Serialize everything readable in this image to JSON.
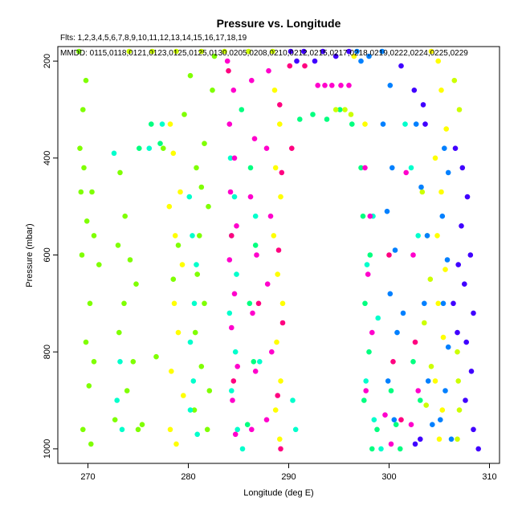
{
  "chart_data": {
    "type": "scatter",
    "title": "Pressure vs. Longitude",
    "fltsLine": "Flts: 1,2,3,4,5,6,7,8,9,10,11,12,13,14,15,16,17,18,19",
    "mmddLine": "MMDD: 0115,0118,0121,0123,0125,0125,0130,0205,0208,0210,0212,0215,0217,0218,0219,0222,0224,0225,0229",
    "xlabel": "Longitude (deg E)",
    "ylabel": "Pressure (mbar)",
    "xlim": [
      267,
      311
    ],
    "ylim": [
      1030,
      170
    ],
    "xticks": [
      "270",
      "280",
      "290",
      "300",
      "310"
    ],
    "yticks": [
      "200",
      "400",
      "600",
      "800",
      "1000"
    ],
    "grid": false,
    "colors": [
      "#7fff00",
      "#ffff00",
      "#00ffcc",
      "#ff00cc",
      "#00ff7f",
      "#ccff00",
      "#0080ff",
      "#4000ff",
      "#ff0080"
    ],
    "series": [
      {
        "color": "#7fff00",
        "points": [
          [
            269.1,
            180
          ],
          [
            269.8,
            240
          ],
          [
            269.5,
            300
          ],
          [
            269.2,
            380
          ],
          [
            269.6,
            420
          ],
          [
            269.3,
            470
          ],
          [
            270.4,
            470
          ],
          [
            269.9,
            530
          ],
          [
            270.6,
            560
          ],
          [
            271.1,
            620
          ],
          [
            269.4,
            600
          ],
          [
            270.2,
            700
          ],
          [
            269.8,
            780
          ],
          [
            270.6,
            820
          ],
          [
            270.1,
            870
          ],
          [
            269.5,
            960
          ],
          [
            270.3,
            990
          ],
          [
            273.2,
            430
          ],
          [
            273.7,
            520
          ],
          [
            273.0,
            580
          ],
          [
            274.2,
            610
          ],
          [
            273.6,
            700
          ],
          [
            274.8,
            660
          ],
          [
            273.1,
            760
          ],
          [
            274.5,
            820
          ],
          [
            273.9,
            880
          ],
          [
            272.7,
            940
          ],
          [
            275.0,
            960
          ],
          [
            275.4,
            950
          ],
          [
            276.8,
            810
          ],
          [
            279.0,
            580
          ],
          [
            278.5,
            650
          ],
          [
            281.6,
            370
          ],
          [
            280.8,
            420
          ],
          [
            281.3,
            460
          ],
          [
            282.0,
            500
          ],
          [
            281.1,
            560
          ],
          [
            280.9,
            640
          ],
          [
            281.6,
            700
          ],
          [
            280.7,
            760
          ],
          [
            281.3,
            830
          ],
          [
            282.1,
            880
          ],
          [
            280.6,
            920
          ],
          [
            281.9,
            960
          ],
          [
            282.6,
            190
          ],
          [
            282.4,
            260
          ],
          [
            280.2,
            230
          ],
          [
            279.6,
            310
          ],
          [
            277.5,
            380
          ]
        ]
      },
      {
        "color": "#ffff00",
        "points": [
          [
            278.2,
            330
          ],
          [
            278.5,
            390
          ],
          [
            278.1,
            500
          ],
          [
            279.2,
            470
          ],
          [
            278.7,
            560
          ],
          [
            279.4,
            620
          ],
          [
            278.6,
            700
          ],
          [
            279.0,
            760
          ],
          [
            278.3,
            840
          ],
          [
            279.5,
            890
          ],
          [
            278.2,
            960
          ],
          [
            278.8,
            990
          ],
          [
            288.6,
            260
          ],
          [
            289.1,
            330
          ],
          [
            288.7,
            420
          ],
          [
            289.2,
            480
          ],
          [
            288.5,
            560
          ],
          [
            288.9,
            640
          ],
          [
            289.4,
            700
          ],
          [
            288.8,
            780
          ],
          [
            289.2,
            860
          ],
          [
            288.7,
            920
          ],
          [
            289.1,
            980
          ],
          [
            297.6,
            330
          ],
          [
            296.5,
            190
          ],
          [
            304.2,
            180
          ],
          [
            304.9,
            200
          ],
          [
            305.2,
            260
          ],
          [
            305.7,
            340
          ],
          [
            304.6,
            400
          ],
          [
            305.2,
            470
          ],
          [
            304.8,
            560
          ],
          [
            305.6,
            630
          ],
          [
            304.9,
            700
          ],
          [
            305.4,
            770
          ],
          [
            304.6,
            860
          ],
          [
            305.3,
            920
          ],
          [
            305.0,
            980
          ]
        ]
      },
      {
        "color": "#00ffcc",
        "points": [
          [
            272.6,
            390
          ],
          [
            273.2,
            820
          ],
          [
            272.9,
            900
          ],
          [
            273.4,
            960
          ],
          [
            276.1,
            380
          ],
          [
            277.4,
            330
          ],
          [
            280.1,
            480
          ],
          [
            280.4,
            560
          ],
          [
            280.8,
            620
          ],
          [
            280.6,
            700
          ],
          [
            280.2,
            780
          ],
          [
            280.5,
            860
          ],
          [
            280.2,
            920
          ],
          [
            280.9,
            970
          ],
          [
            284.2,
            400
          ],
          [
            284.6,
            480
          ],
          [
            284.3,
            560
          ],
          [
            284.8,
            640
          ],
          [
            284.1,
            720
          ],
          [
            284.7,
            800
          ],
          [
            284.3,
            880
          ],
          [
            284.9,
            960
          ],
          [
            285.4,
            1000
          ],
          [
            286.7,
            520
          ],
          [
            287.1,
            820
          ],
          [
            290.4,
            900
          ],
          [
            290.7,
            960
          ],
          [
            297.8,
            620
          ],
          [
            298.4,
            520
          ],
          [
            298.9,
            730
          ],
          [
            297.7,
            860
          ],
          [
            298.5,
            940
          ],
          [
            299.2,
            1000
          ],
          [
            301.6,
            330
          ],
          [
            302.2,
            420
          ],
          [
            302.9,
            560
          ]
        ]
      },
      {
        "color": "#00ff7f",
        "points": [
          [
            276.3,
            330
          ],
          [
            277.2,
            370
          ],
          [
            275.1,
            380
          ],
          [
            285.3,
            300
          ],
          [
            286.2,
            420
          ],
          [
            286.7,
            580
          ],
          [
            286.1,
            700
          ],
          [
            286.5,
            820
          ],
          [
            285.9,
            950
          ],
          [
            291.1,
            320
          ],
          [
            292.4,
            310
          ],
          [
            293.8,
            320
          ],
          [
            295.1,
            300
          ],
          [
            296.3,
            330
          ],
          [
            297.2,
            420
          ],
          [
            297.4,
            520
          ],
          [
            298.1,
            600
          ],
          [
            297.6,
            700
          ],
          [
            298.0,
            800
          ],
          [
            297.5,
            900
          ],
          [
            298.3,
            1000
          ],
          [
            298.8,
            960
          ],
          [
            300.2,
            880
          ],
          [
            300.7,
            950
          ],
          [
            301.1,
            1000
          ],
          [
            302.4,
            820
          ],
          [
            303.1,
            900
          ]
        ]
      },
      {
        "color": "#ccff00",
        "points": [
          [
            274.1,
            180
          ],
          [
            276.4,
            180
          ],
          [
            278.8,
            180
          ],
          [
            281.3,
            180
          ],
          [
            283.6,
            180
          ],
          [
            286.0,
            180
          ],
          [
            288.4,
            180
          ],
          [
            294.7,
            300
          ],
          [
            295.6,
            300
          ],
          [
            296.2,
            310
          ],
          [
            303.3,
            470
          ],
          [
            303.8,
            560
          ],
          [
            304.1,
            650
          ],
          [
            303.5,
            740
          ],
          [
            304.2,
            830
          ],
          [
            303.7,
            910
          ],
          [
            306.8,
            800
          ],
          [
            306.9,
            860
          ],
          [
            307.0,
            920
          ],
          [
            306.8,
            980
          ],
          [
            306.5,
            240
          ],
          [
            307.0,
            300
          ]
        ]
      },
      {
        "color": "#ff00cc",
        "points": [
          [
            283.9,
            200
          ],
          [
            284.5,
            260
          ],
          [
            284.1,
            330
          ],
          [
            284.6,
            400
          ],
          [
            284.2,
            470
          ],
          [
            284.8,
            540
          ],
          [
            284.1,
            610
          ],
          [
            284.6,
            680
          ],
          [
            284.3,
            750
          ],
          [
            284.9,
            830
          ],
          [
            284.4,
            900
          ],
          [
            284.7,
            970
          ],
          [
            286.3,
            240
          ],
          [
            286.6,
            360
          ],
          [
            286.2,
            480
          ],
          [
            286.8,
            600
          ],
          [
            286.4,
            720
          ],
          [
            286.7,
            840
          ],
          [
            286.3,
            960
          ],
          [
            288.0,
            220
          ],
          [
            287.8,
            380
          ],
          [
            288.2,
            520
          ],
          [
            287.9,
            660
          ],
          [
            288.3,
            800
          ],
          [
            287.8,
            940
          ],
          [
            292.9,
            250
          ],
          [
            293.6,
            250
          ],
          [
            294.3,
            250
          ],
          [
            295.2,
            250
          ],
          [
            296.0,
            250
          ],
          [
            297.6,
            420
          ],
          [
            298.1,
            520
          ],
          [
            297.9,
            640
          ],
          [
            298.3,
            760
          ],
          [
            297.7,
            880
          ],
          [
            299.6,
            930
          ],
          [
            300.2,
            990
          ],
          [
            302.2,
            950
          ],
          [
            302.9,
            880
          ],
          [
            302.4,
            600
          ],
          [
            301.7,
            430
          ]
        ]
      },
      {
        "color": "#ff0080",
        "points": [
          [
            284.0,
            220
          ],
          [
            284.3,
            560
          ],
          [
            284.5,
            860
          ],
          [
            287.0,
            700
          ],
          [
            289.1,
            290
          ],
          [
            289.3,
            430
          ],
          [
            289.0,
            590
          ],
          [
            289.4,
            740
          ],
          [
            288.9,
            890
          ],
          [
            289.2,
            1000
          ],
          [
            290.1,
            210
          ],
          [
            290.3,
            380
          ],
          [
            291.6,
            210
          ],
          [
            300.0,
            600
          ],
          [
            300.4,
            820
          ],
          [
            301.2,
            940
          ],
          [
            302.6,
            780
          ]
        ]
      },
      {
        "color": "#0080ff",
        "points": [
          [
            296.8,
            180
          ],
          [
            297.2,
            200
          ],
          [
            298.0,
            190
          ],
          [
            299.3,
            180
          ],
          [
            300.1,
            250
          ],
          [
            299.4,
            330
          ],
          [
            300.3,
            420
          ],
          [
            299.8,
            510
          ],
          [
            300.6,
            590
          ],
          [
            300.1,
            680
          ],
          [
            300.8,
            760
          ],
          [
            299.9,
            860
          ],
          [
            300.5,
            940
          ],
          [
            301.4,
            720
          ],
          [
            302.7,
            330
          ],
          [
            303.2,
            460
          ],
          [
            303.8,
            560
          ],
          [
            303.5,
            700
          ],
          [
            303.9,
            860
          ],
          [
            304.3,
            950
          ],
          [
            305.1,
            940
          ],
          [
            305.6,
            880
          ],
          [
            305.9,
            790
          ],
          [
            305.4,
            700
          ],
          [
            305.8,
            610
          ],
          [
            305.3,
            520
          ],
          [
            305.9,
            430
          ],
          [
            305.5,
            380
          ],
          [
            306.2,
            980
          ]
        ]
      },
      {
        "color": "#4000ff",
        "points": [
          [
            290.2,
            180
          ],
          [
            290.8,
            200
          ],
          [
            291.5,
            180
          ],
          [
            292.6,
            200
          ],
          [
            293.4,
            180
          ],
          [
            294.7,
            190
          ],
          [
            296.0,
            180
          ],
          [
            301.2,
            210
          ],
          [
            302.5,
            260
          ],
          [
            303.4,
            290
          ],
          [
            302.6,
            990
          ],
          [
            303.1,
            980
          ],
          [
            303.6,
            330
          ],
          [
            306.6,
            380
          ],
          [
            307.3,
            420
          ],
          [
            307.8,
            480
          ],
          [
            307.2,
            540
          ],
          [
            308.1,
            600
          ],
          [
            307.5,
            660
          ],
          [
            308.4,
            720
          ],
          [
            307.7,
            780
          ],
          [
            308.2,
            840
          ],
          [
            307.6,
            900
          ],
          [
            308.4,
            960
          ],
          [
            308.9,
            1000
          ],
          [
            306.9,
            620
          ],
          [
            306.4,
            700
          ],
          [
            306.8,
            760
          ]
        ]
      }
    ]
  }
}
